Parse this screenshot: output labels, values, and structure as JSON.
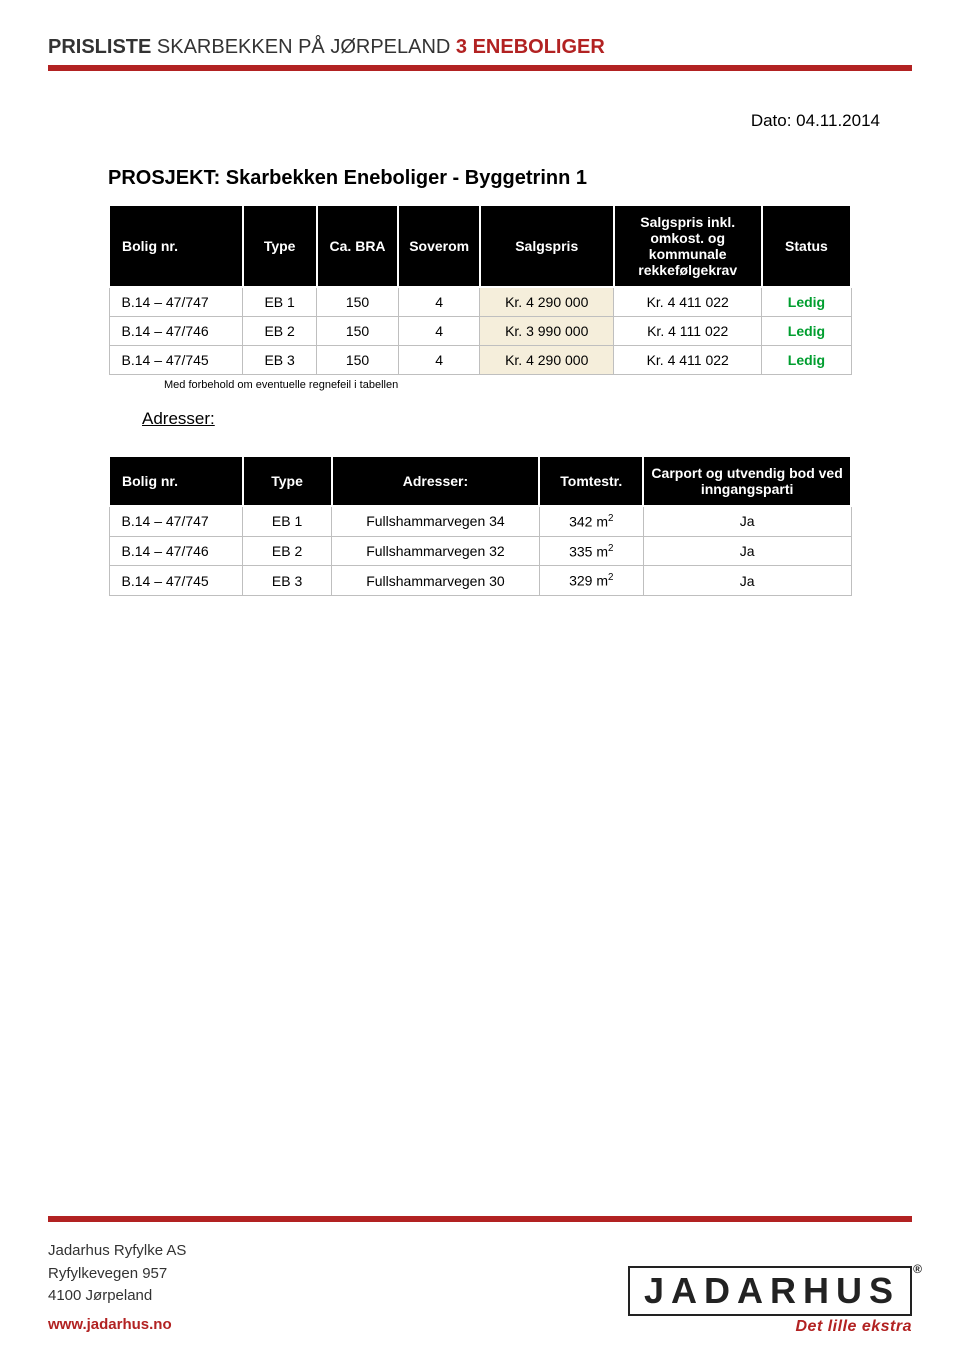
{
  "colors": {
    "brand_red": "#b22222",
    "header_bg": "#000000",
    "header_fg": "#ffffff",
    "cell_border": "#bfbfbf",
    "highlight_bg": "#f5eedb",
    "ledig_color": "#009e2f",
    "body_text": "#333333"
  },
  "header": {
    "prefix": "PRISLISTE",
    "mid": " SKARBEKKEN PÅ JØRPELAND ",
    "suffix": "3 ENEBOLIGER"
  },
  "date": "Dato: 04.11.2014",
  "project_title": "PROSJEKT: Skarbekken Eneboliger - Byggetrinn 1",
  "table1": {
    "columns": [
      "Bolig nr.",
      "Type",
      "Ca. BRA",
      "Soverom",
      "Salgspris",
      "Salgspris inkl. omkost. og kommunale rekkefølgekrav",
      "Status"
    ],
    "rows": [
      {
        "bolig": "B.14 – 47/747",
        "type": "EB 1",
        "bra": "150",
        "soverom": "4",
        "salg": "Kr. 4 290 000",
        "inkl": "Kr. 4 411 022",
        "status": "Ledig"
      },
      {
        "bolig": "B.14 – 47/746",
        "type": "EB 2",
        "bra": "150",
        "soverom": "4",
        "salg": "Kr. 3 990 000",
        "inkl": "Kr. 4 111 022",
        "status": "Ledig"
      },
      {
        "bolig": "B.14 – 47/745",
        "type": "EB 3",
        "bra": "150",
        "soverom": "4",
        "salg": "Kr. 4 290 000",
        "inkl": "Kr. 4 411 022",
        "status": "Ledig"
      }
    ],
    "footnote": "Med forbehold om eventuelle regnefeil i tabellen"
  },
  "adresser_label": "Adresser:",
  "table2": {
    "columns": [
      "Bolig nr.",
      "Type",
      "Adresser:",
      "Tomtestr.",
      "Carport og utvendig bod ved inngangsparti"
    ],
    "rows": [
      {
        "bolig": "B.14 – 47/747",
        "type": "EB 1",
        "adr": "Fullshammarvegen 34",
        "tomt": "342 m",
        "carport": "Ja"
      },
      {
        "bolig": "B.14 – 47/746",
        "type": "EB 2",
        "adr": "Fullshammarvegen 32",
        "tomt": "335 m",
        "carport": "Ja"
      },
      {
        "bolig": "B.14 – 47/745",
        "type": "EB 3",
        "adr": "Fullshammarvegen 30",
        "tomt": "329 m",
        "carport": "Ja"
      }
    ]
  },
  "footer": {
    "company": "Jadarhus Ryfylke AS",
    "street": "Ryfylkevegen 957",
    "city": "4100 Jørpeland",
    "website": "www.jadarhus.no",
    "logo_text": "JADARHUS",
    "tagline": "Det lille ekstra"
  }
}
